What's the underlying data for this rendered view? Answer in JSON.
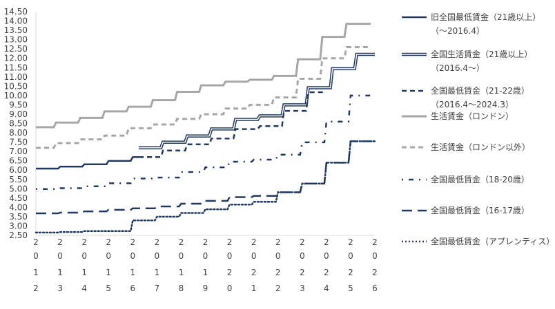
{
  "chart_data": {
    "type": "line",
    "title": "",
    "xlabel": "",
    "ylabel": "",
    "ylim": [
      2.5,
      14.5
    ],
    "ytick_step": 0.5,
    "y_tick_labels": [
      "2.50",
      "3.00",
      "3.50",
      "4.00",
      "4.50",
      "5.00",
      "5.50",
      "6.00",
      "6.50",
      "7.00",
      "7.50",
      "8.00",
      "8.50",
      "9.00",
      "9.50",
      "10.00",
      "10.50",
      "11.00",
      "11.50",
      "12.00",
      "12.50",
      "13.00",
      "13.50",
      "14.00",
      "14.50"
    ],
    "grid": false,
    "legend_position": "right",
    "x_ticks": [
      {
        "label": "2012",
        "chars": [
          "2",
          "0",
          "1",
          "2"
        ],
        "x": 2012
      },
      {
        "label": "2013",
        "chars": [
          "2",
          "0",
          "1",
          "3"
        ],
        "x": 2013
      },
      {
        "label": "2014",
        "chars": [
          "2",
          "0",
          "1",
          "4"
        ],
        "x": 2014
      },
      {
        "label": "2015",
        "chars": [
          "2",
          "0",
          "1",
          "5"
        ],
        "x": 2015
      },
      {
        "label": "2016",
        "chars": [
          "2",
          "0",
          "1",
          "6"
        ],
        "x": 2016
      },
      {
        "label": "2017",
        "chars": [
          "2",
          "0",
          "1",
          "7"
        ],
        "x": 2017
      },
      {
        "label": "2018",
        "chars": [
          "2",
          "0",
          "1",
          "8"
        ],
        "x": 2018
      },
      {
        "label": "2019",
        "chars": [
          "2",
          "0",
          "1",
          "9"
        ],
        "x": 2019
      },
      {
        "label": "2020",
        "chars": [
          "2",
          "0",
          "2",
          "0"
        ],
        "x": 2020
      },
      {
        "label": "2021",
        "chars": [
          "2",
          "0",
          "2",
          "1"
        ],
        "x": 2021
      },
      {
        "label": "2022",
        "chars": [
          "2",
          "0",
          "2",
          "2"
        ],
        "x": 2022
      },
      {
        "label": "2023",
        "chars": [
          "2",
          "0",
          "2",
          "3"
        ],
        "x": 2023
      },
      {
        "label": "2024",
        "chars": [
          "2",
          "0",
          "2",
          "4"
        ],
        "x": 2024
      },
      {
        "label": "2025",
        "chars": [
          "2",
          "0",
          "2",
          "5"
        ],
        "x": 2025
      },
      {
        "label": "2026",
        "chars": [
          "2",
          "0",
          "2",
          "6"
        ],
        "x": 2026
      }
    ],
    "series": [
      {
        "name": "旧全国最低賃金（21歳以上）（～2016.4）",
        "color": "#1f3864",
        "style": "solid",
        "points": [
          [
            2012.0,
            6.08
          ],
          [
            2013.0,
            6.19
          ],
          [
            2014.0,
            6.31
          ],
          [
            2015.0,
            6.5
          ],
          [
            2016.0,
            6.7
          ],
          [
            2016.25,
            6.7
          ]
        ]
      },
      {
        "name": "全国生活賃金（21歳以上）（2016.4～）",
        "color": "#1f3864",
        "style": "double",
        "points": [
          [
            2016.25,
            7.2
          ],
          [
            2017.25,
            7.5
          ],
          [
            2018.25,
            7.83
          ],
          [
            2019.25,
            8.21
          ],
          [
            2020.25,
            8.72
          ],
          [
            2021.25,
            8.91
          ],
          [
            2022.25,
            9.5
          ],
          [
            2023.25,
            10.42
          ],
          [
            2024.25,
            11.44
          ],
          [
            2025.25,
            12.21
          ],
          [
            2026.0,
            12.21
          ]
        ]
      },
      {
        "name": "全国最低賃金（21-22歳）（2016.4～2024.3）",
        "color": "#1f3864",
        "style": "dash",
        "points": [
          [
            2016.25,
            6.7
          ],
          [
            2017.25,
            7.05
          ],
          [
            2018.25,
            7.38
          ],
          [
            2019.25,
            7.7
          ],
          [
            2020.25,
            8.2
          ],
          [
            2021.25,
            8.36
          ],
          [
            2022.25,
            9.18
          ],
          [
            2023.25,
            10.18
          ],
          [
            2024.0,
            10.18
          ]
        ]
      },
      {
        "name": "生活賃金（ロンドン）",
        "color": "#a6a6a6",
        "style": "solid",
        "points": [
          [
            2012.0,
            8.3
          ],
          [
            2012.83,
            8.55
          ],
          [
            2013.83,
            8.8
          ],
          [
            2014.83,
            9.15
          ],
          [
            2015.83,
            9.4
          ],
          [
            2016.83,
            9.75
          ],
          [
            2017.83,
            10.2
          ],
          [
            2018.83,
            10.55
          ],
          [
            2019.83,
            10.75
          ],
          [
            2020.83,
            10.85
          ],
          [
            2021.83,
            11.05
          ],
          [
            2022.83,
            11.95
          ],
          [
            2023.83,
            13.15
          ],
          [
            2024.83,
            13.85
          ],
          [
            2025.83,
            13.85
          ]
        ]
      },
      {
        "name": "生活賃金（ロンドン以外）",
        "color": "#a6a6a6",
        "style": "dash",
        "points": [
          [
            2012.0,
            7.2
          ],
          [
            2012.83,
            7.45
          ],
          [
            2013.83,
            7.65
          ],
          [
            2014.83,
            7.85
          ],
          [
            2015.83,
            8.25
          ],
          [
            2016.83,
            8.45
          ],
          [
            2017.83,
            8.75
          ],
          [
            2018.83,
            9.0
          ],
          [
            2019.83,
            9.3
          ],
          [
            2020.83,
            9.5
          ],
          [
            2021.83,
            9.9
          ],
          [
            2022.83,
            10.9
          ],
          [
            2023.83,
            12.0
          ],
          [
            2024.83,
            12.6
          ],
          [
            2025.83,
            12.6
          ]
        ]
      },
      {
        "name": "全国最低賃金（18-20歳）",
        "color": "#1f3864",
        "style": "dashdot",
        "points": [
          [
            2012.0,
            4.98
          ],
          [
            2013.0,
            5.03
          ],
          [
            2014.0,
            5.13
          ],
          [
            2015.0,
            5.3
          ],
          [
            2016.0,
            5.55
          ],
          [
            2017.0,
            5.6
          ],
          [
            2018.0,
            5.9
          ],
          [
            2019.0,
            6.15
          ],
          [
            2020.0,
            6.45
          ],
          [
            2021.0,
            6.56
          ],
          [
            2022.0,
            6.83
          ],
          [
            2023.0,
            7.49
          ],
          [
            2024.0,
            8.6
          ],
          [
            2025.0,
            10.0
          ],
          [
            2026.0,
            10.0
          ]
        ]
      },
      {
        "name": "全国最低賃金（16-17歳）",
        "color": "#1f3864",
        "style": "longdash",
        "points": [
          [
            2012.0,
            3.68
          ],
          [
            2013.0,
            3.72
          ],
          [
            2014.0,
            3.79
          ],
          [
            2015.0,
            3.87
          ],
          [
            2016.0,
            3.95
          ],
          [
            2017.0,
            4.05
          ],
          [
            2018.0,
            4.2
          ],
          [
            2019.0,
            4.35
          ],
          [
            2020.0,
            4.55
          ],
          [
            2021.0,
            4.62
          ],
          [
            2022.0,
            4.81
          ],
          [
            2023.0,
            5.28
          ],
          [
            2024.0,
            6.4
          ],
          [
            2025.0,
            7.55
          ],
          [
            2026.0,
            7.55
          ]
        ]
      },
      {
        "name": "全国最低賃金（アプレンティス）",
        "color": "#1f3864",
        "style": "dot",
        "points": [
          [
            2012.0,
            2.65
          ],
          [
            2013.0,
            2.68
          ],
          [
            2014.0,
            2.73
          ],
          [
            2015.0,
            2.73
          ],
          [
            2016.0,
            3.3
          ],
          [
            2017.0,
            3.5
          ],
          [
            2018.0,
            3.7
          ],
          [
            2019.0,
            3.9
          ],
          [
            2020.0,
            4.15
          ],
          [
            2021.0,
            4.3
          ],
          [
            2022.0,
            4.81
          ],
          [
            2023.0,
            5.28
          ],
          [
            2024.0,
            6.4
          ],
          [
            2025.0,
            7.55
          ],
          [
            2026.0,
            7.55
          ]
        ]
      }
    ]
  },
  "legend_items": [
    {
      "name": "legend-item-old-nmw-21",
      "style": "solid",
      "color": "#1f3864",
      "lines": [
        "旧全国最低賃金（21歳以上）",
        "（～2016.4）"
      ]
    },
    {
      "name": "legend-item-nlw-21",
      "style": "double",
      "color": "#1f3864",
      "lines": [
        "全国生活賃金（21歳以上）",
        "（2016.4～）"
      ]
    },
    {
      "name": "legend-item-nmw-21-22",
      "style": "dash",
      "color": "#1f3864",
      "lines": [
        "全国最低賃金（21-22歳）",
        "（2016.4～2024.3）"
      ]
    },
    {
      "name": "legend-item-lw-london",
      "style": "solid",
      "color": "#a6a6a6",
      "lines": [
        "生活賃金（ロンドン）"
      ]
    },
    {
      "name": "legend-item-lw-outside-london",
      "style": "dash",
      "color": "#a6a6a6",
      "lines": [
        "生活賃金（ロンドン以外）"
      ]
    },
    {
      "name": "legend-item-nmw-18-20",
      "style": "dashdot",
      "color": "#1f3864",
      "lines": [
        "全国最低賃金（18-20歳）"
      ]
    },
    {
      "name": "legend-item-nmw-16-17",
      "style": "longdash",
      "color": "#1f3864",
      "lines": [
        "全国最低賃金（16-17歳）"
      ]
    },
    {
      "name": "legend-item-nmw-apprentice",
      "style": "dot",
      "color": "#1f3864",
      "lines": [
        "全国最低賃金（アプレンティス）"
      ]
    }
  ]
}
